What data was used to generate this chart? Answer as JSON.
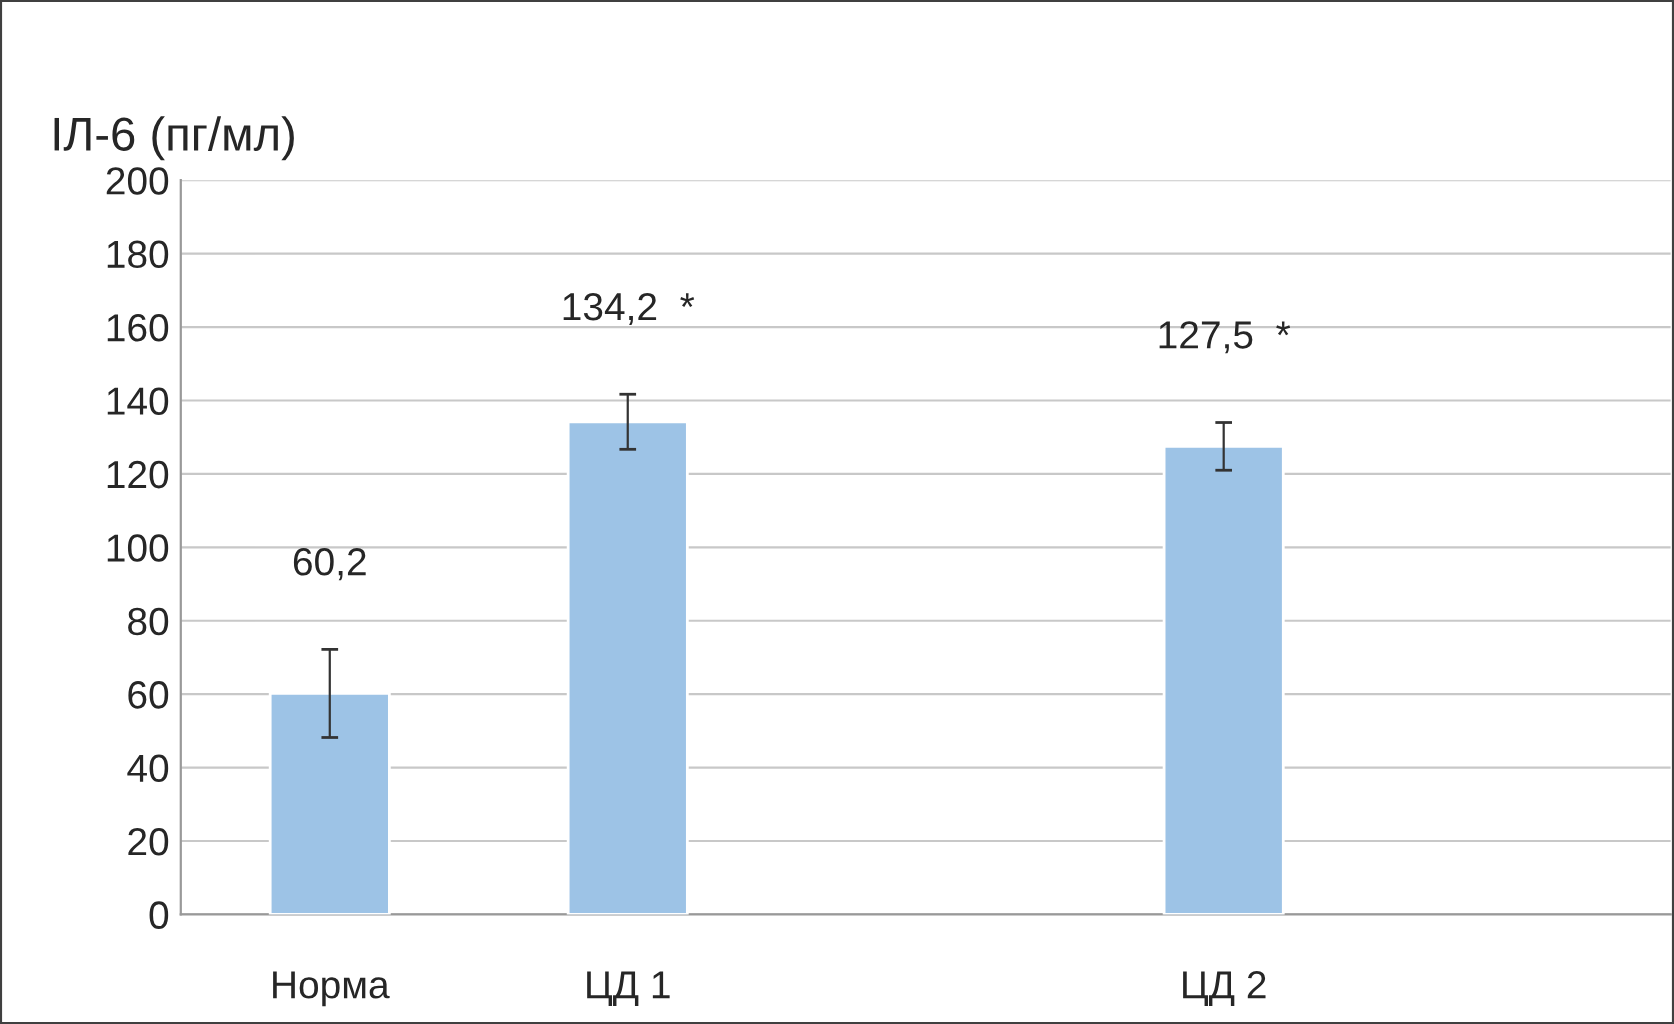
{
  "chart_data": {
    "type": "bar",
    "ylabel": "ІЛ-6 (пг/мл)",
    "categories": [
      "Норма",
      "ЦД 1",
      null,
      "ЦД 2",
      null
    ],
    "values": [
      60.2,
      134.2,
      null,
      127.5,
      null
    ],
    "errors": [
      12,
      7.5,
      null,
      6.5,
      null
    ],
    "value_labels": [
      "60,2",
      "134,2  *",
      null,
      "127,5  *",
      null
    ],
    "color": "#9dc3e6",
    "ylim": [
      0,
      200
    ],
    "yticks": [
      0,
      20,
      40,
      60,
      80,
      100,
      120,
      140,
      160,
      180,
      200
    ],
    "grid": "y"
  }
}
